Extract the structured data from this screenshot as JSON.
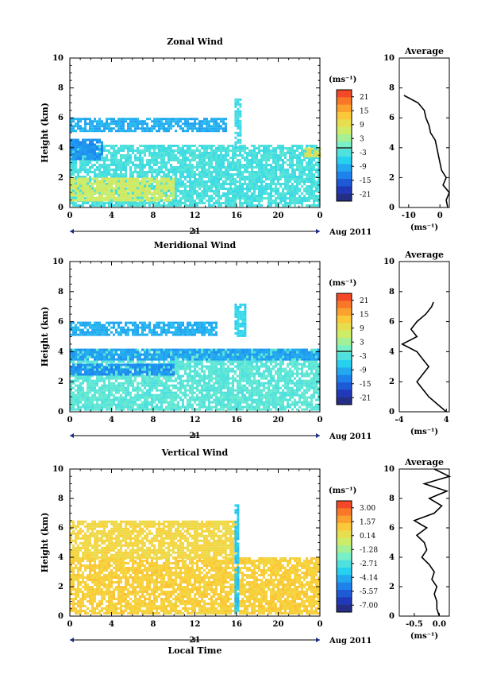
{
  "figure": {
    "date_label": "21",
    "month_label": "Aug 2011",
    "bottom_xlabel": "Local Time",
    "time_ticks": [
      "0",
      "4",
      "8",
      "12",
      "16",
      "20",
      "0"
    ],
    "height_ticks": [
      "0",
      "2",
      "4",
      "6",
      "8",
      "10"
    ],
    "ylabel": "Height (km)",
    "panels": [
      {
        "key": "zonal",
        "title": "Zonal Wind",
        "colorbar_unit": "(ms⁻¹)",
        "colorbar_ticks": [
          "21",
          "15",
          "9",
          "3",
          "-3",
          "-9",
          "-15",
          "-21"
        ],
        "average_title": "Average",
        "average_xticks": [
          "-10",
          "0"
        ],
        "average_unit": "(ms⁻¹)",
        "average_ticks": [
          "0",
          "2",
          "4",
          "6",
          "8",
          "10"
        ]
      },
      {
        "key": "meridional",
        "title": "Meridional Wind",
        "colorbar_unit": "(ms⁻¹)",
        "colorbar_ticks": [
          "21",
          "15",
          "9",
          "3",
          "-3",
          "-9",
          "-15",
          "-21"
        ],
        "average_title": "Average",
        "average_xticks": [
          "-4",
          "4"
        ],
        "average_unit": "(ms⁻¹)",
        "average_ticks": [
          "0",
          "2",
          "4",
          "6",
          "8",
          "10"
        ]
      },
      {
        "key": "vertical",
        "title": "Vertical Wind",
        "colorbar_unit": "(ms⁻¹)",
        "colorbar_ticks": [
          "3.00",
          "1.57",
          "0.14",
          "-1.28",
          "-2.71",
          "-4.14",
          "-5.57",
          "-7.00"
        ],
        "average_title": "Average",
        "average_xticks": [
          "-0.5",
          "0.0"
        ],
        "average_unit": "(ms⁻¹)",
        "average_ticks": [
          "0",
          "2",
          "4",
          "6",
          "8",
          "10"
        ]
      }
    ]
  },
  "chart_data": [
    {
      "type": "heatmap",
      "title": "Zonal Wind",
      "xlabel": "",
      "ylabel": "Height (km)",
      "xlim": [
        0,
        24
      ],
      "ylim": [
        0,
        10
      ],
      "colorbar_range": [
        -21,
        21
      ],
      "regions": [
        {
          "x": [
            0,
            24
          ],
          "y": [
            0.2,
            4.2
          ],
          "value": -3
        },
        {
          "x": [
            0,
            15
          ],
          "y": [
            5.2,
            6.0
          ],
          "value": -8
        },
        {
          "x": [
            0,
            3
          ],
          "y": [
            3.2,
            4.6
          ],
          "value": -10
        },
        {
          "x": [
            0,
            10
          ],
          "y": [
            0.5,
            2.0
          ],
          "value": 6
        },
        {
          "x": [
            15.8,
            16.4
          ],
          "y": [
            4.0,
            7.3
          ],
          "value": -4
        },
        {
          "x": [
            22.5,
            24
          ],
          "y": [
            3.5,
            4.0
          ],
          "value": 8
        }
      ],
      "average_profile": {
        "height_km": [
          0,
          0.5,
          1.0,
          1.5,
          2.0,
          2.5,
          3.0,
          3.5,
          4.0,
          4.5,
          5.0,
          5.5,
          6.0,
          6.5,
          7.0,
          7.5
        ],
        "value": [
          2.5,
          2.0,
          3.0,
          1.0,
          2.0,
          0.5,
          0.0,
          -0.5,
          -1.0,
          -1.5,
          -3.0,
          -3.5,
          -4.5,
          -5.0,
          -7.0,
          -11.5
        ],
        "xlim": [
          -13,
          3
        ]
      }
    },
    {
      "type": "heatmap",
      "title": "Meridional Wind",
      "xlabel": "",
      "ylabel": "Height (km)",
      "xlim": [
        0,
        24
      ],
      "ylim": [
        0,
        10
      ],
      "colorbar_range": [
        -21,
        21
      ],
      "regions": [
        {
          "x": [
            0,
            24
          ],
          "y": [
            0.2,
            4.2
          ],
          "value": -2
        },
        {
          "x": [
            0,
            14
          ],
          "y": [
            5.2,
            6.0
          ],
          "value": -8
        },
        {
          "x": [
            0,
            24
          ],
          "y": [
            3.5,
            4.2
          ],
          "value": -9
        },
        {
          "x": [
            0,
            10
          ],
          "y": [
            2.5,
            3.2
          ],
          "value": -10
        },
        {
          "x": [
            15.8,
            16.8
          ],
          "y": [
            5.0,
            7.2
          ],
          "value": -5
        }
      ],
      "average_profile": {
        "height_km": [
          0,
          0.5,
          1.0,
          1.5,
          2.0,
          2.5,
          3.0,
          3.5,
          4.0,
          4.5,
          5.0,
          5.5,
          6.0,
          6.5,
          7.0,
          7.3
        ],
        "value": [
          4.0,
          2.5,
          1.0,
          0.0,
          -1.0,
          0.0,
          1.0,
          0.0,
          -1.0,
          -3.5,
          -1.0,
          -2.0,
          -1.0,
          0.5,
          1.5,
          1.8
        ],
        "xlim": [
          -4,
          4.5
        ]
      }
    },
    {
      "type": "heatmap",
      "title": "Vertical Wind",
      "xlabel": "Local Time",
      "ylabel": "Height (km)",
      "xlim": [
        0,
        24
      ],
      "ylim": [
        0,
        10
      ],
      "colorbar_range": [
        -7.0,
        3.0
      ],
      "regions": [
        {
          "x": [
            0,
            24
          ],
          "y": [
            0.2,
            4.0
          ],
          "value": 0.5
        },
        {
          "x": [
            0,
            16
          ],
          "y": [
            4.0,
            6.5
          ],
          "value": 0.3
        },
        {
          "x": [
            15.8,
            16.2
          ],
          "y": [
            0.2,
            7.6
          ],
          "value": -3.5
        }
      ],
      "average_profile": {
        "height_km": [
          0,
          0.5,
          1.0,
          1.5,
          2.0,
          2.5,
          3.0,
          3.5,
          4.0,
          4.5,
          5.0,
          5.5,
          6.0,
          6.5,
          7.0,
          7.5,
          8.0,
          8.5,
          9.0,
          9.5,
          10.0
        ],
        "value": [
          0.0,
          -0.05,
          -0.05,
          -0.1,
          -0.05,
          -0.15,
          -0.1,
          -0.2,
          -0.35,
          -0.25,
          -0.3,
          -0.45,
          -0.25,
          -0.5,
          -0.1,
          0.05,
          -0.2,
          0.15,
          -0.3,
          0.2,
          -0.1
        ],
        "xlim": [
          -0.8,
          0.2
        ]
      }
    }
  ]
}
